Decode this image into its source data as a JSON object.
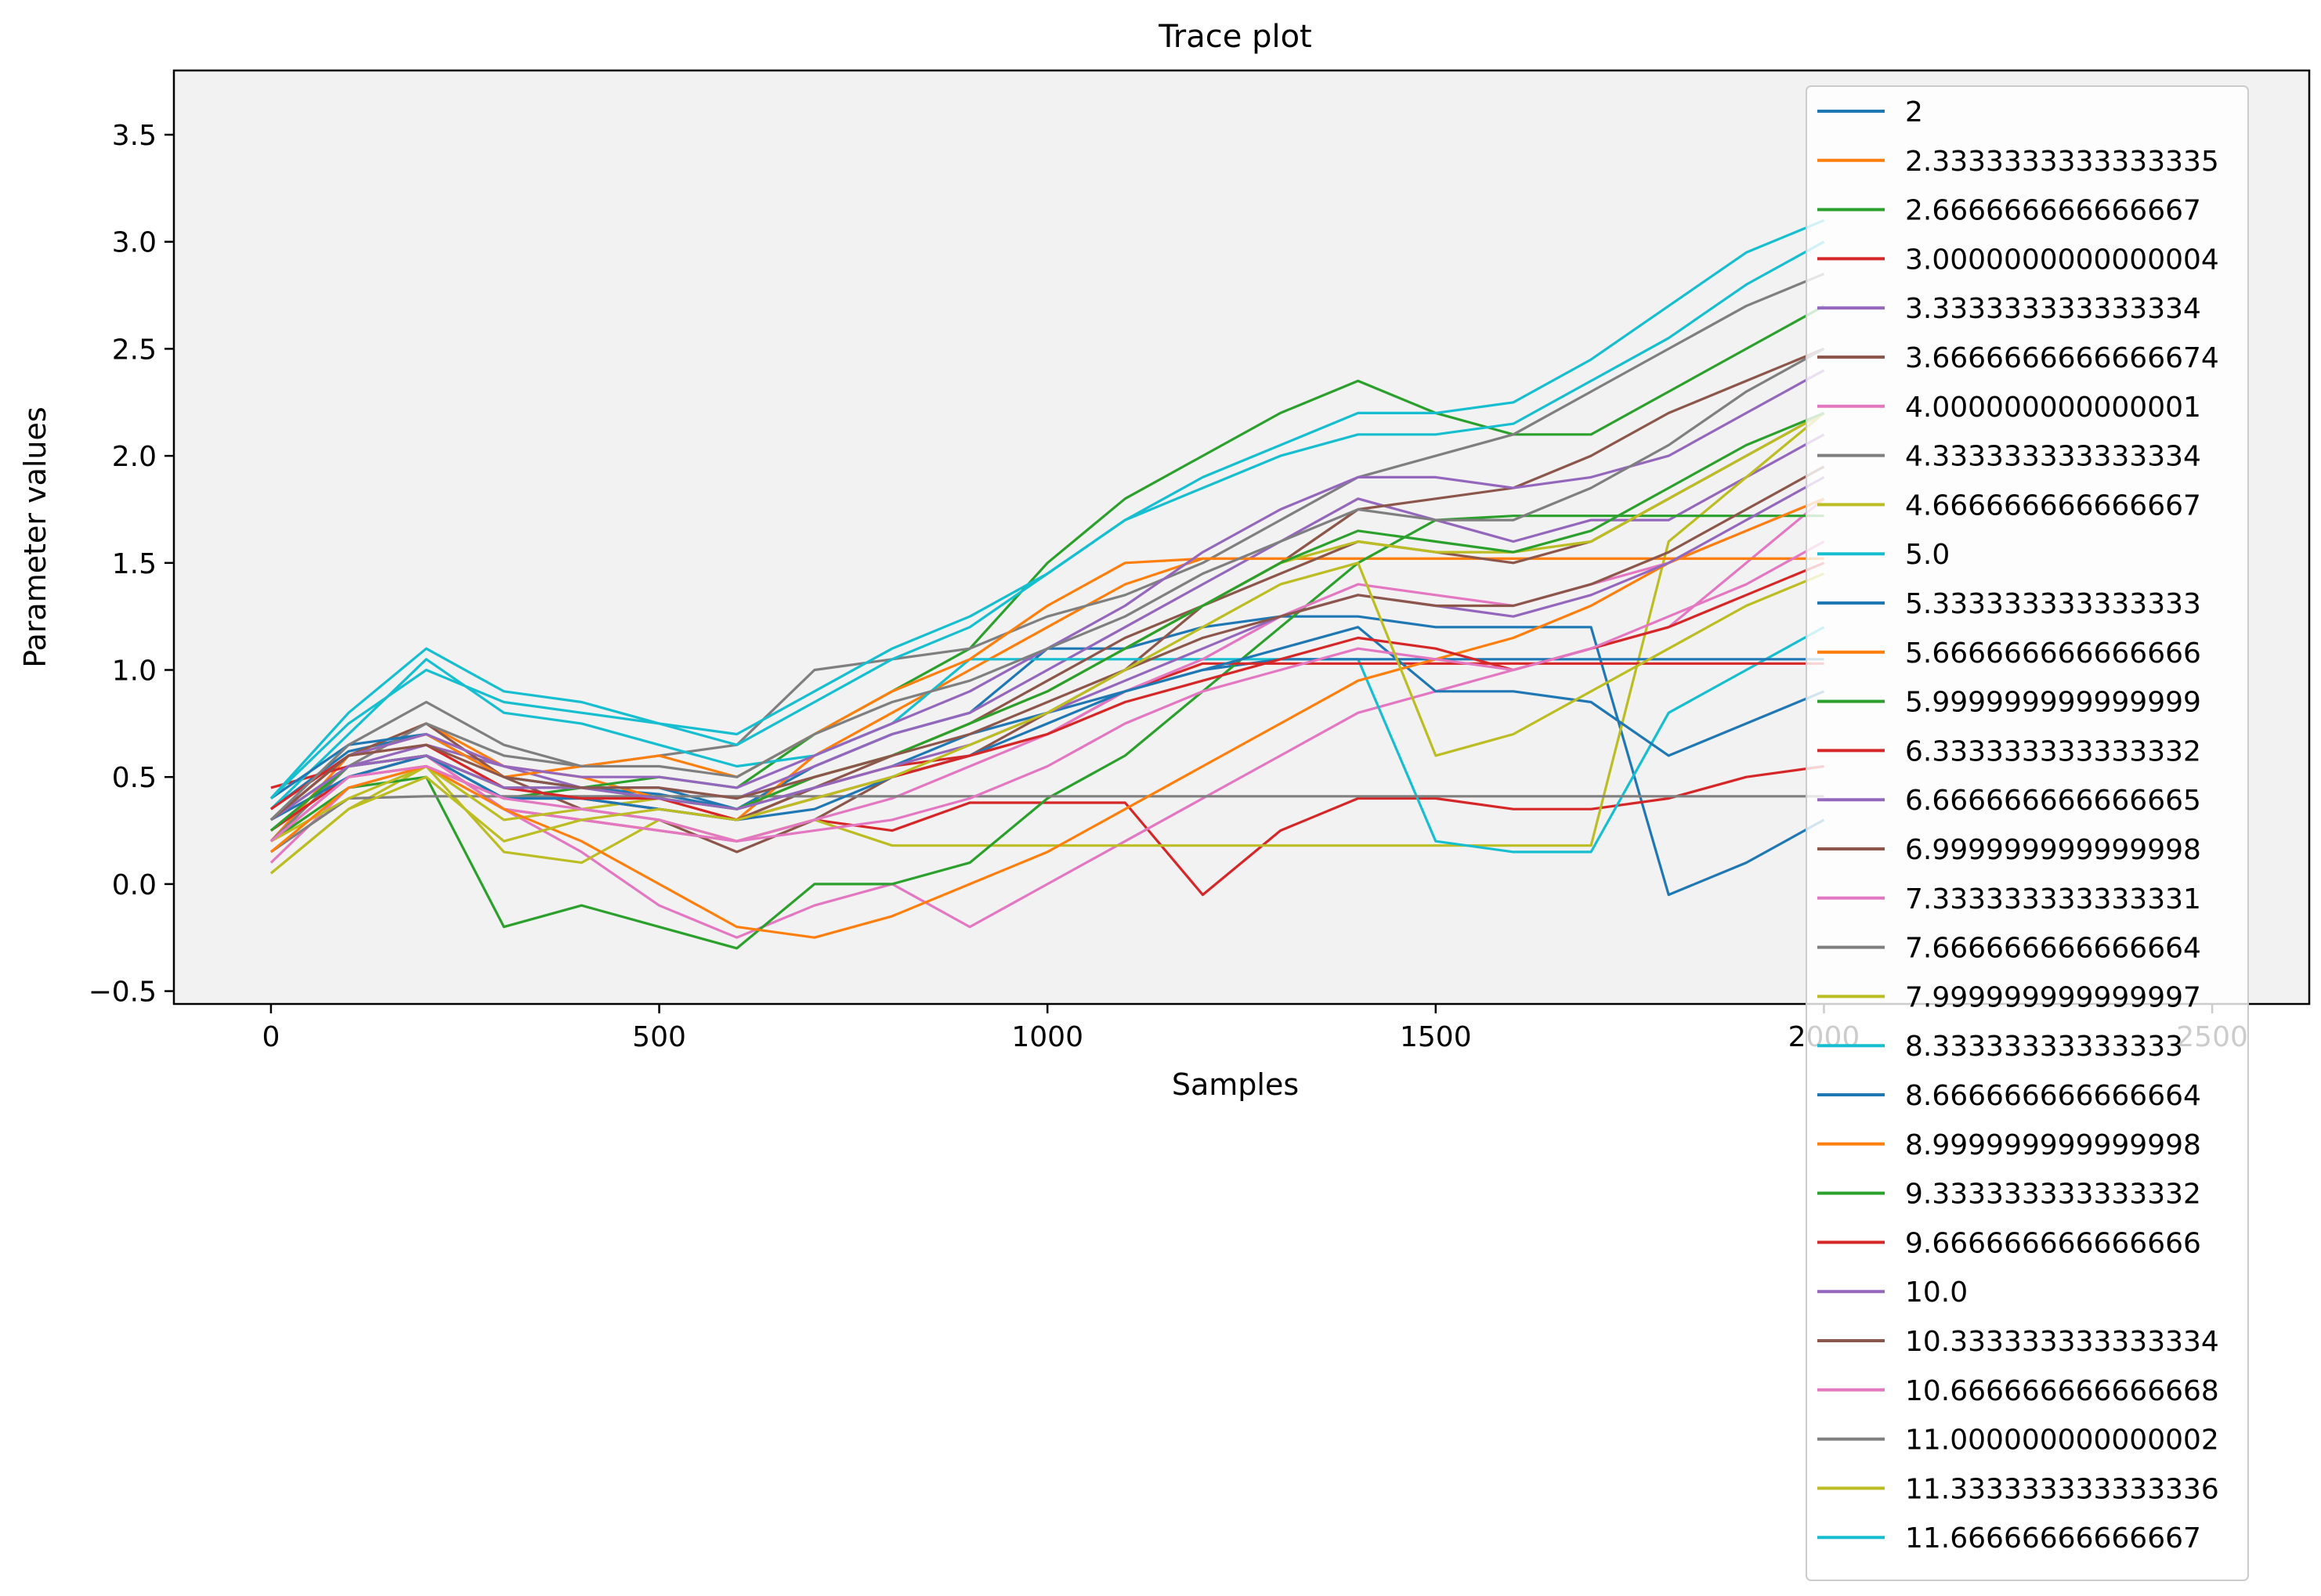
{
  "chart_data": {
    "type": "line",
    "title": "Trace plot",
    "xlabel": "Samples",
    "ylabel": "Parameter values",
    "xlim": [
      -125,
      2625
    ],
    "ylim": [
      -0.56,
      3.8
    ],
    "xticks": [
      0,
      500,
      1000,
      1500,
      2000,
      2500
    ],
    "xtick_labels": [
      "0",
      "500",
      "1000",
      "1500",
      "2000",
      "2500"
    ],
    "yticks": [
      -0.5,
      0.0,
      0.5,
      1.0,
      1.5,
      2.0,
      2.5,
      3.0,
      3.5
    ],
    "ytick_labels": [
      "−0.5",
      "0.0",
      "0.5",
      "1.0",
      "1.5",
      "2.0",
      "2.5",
      "3.0",
      "3.5"
    ],
    "grid": false,
    "plot_background": "#f2f2f2",
    "legend_position": "top-right, extending below the plot area",
    "x": [
      0,
      100,
      200,
      300,
      400,
      500,
      600,
      700,
      800,
      900,
      1000,
      1100,
      1200,
      1300,
      1400,
      1500,
      1600,
      1700,
      1800,
      1900,
      2000
    ],
    "series": [
      {
        "name": "2",
        "color": "#1f77b4",
        "values": [
          0.35,
          0.62,
          0.7,
          0.5,
          0.45,
          0.42,
          0.35,
          0.55,
          0.7,
          0.8,
          1.1,
          1.1,
          1.2,
          1.25,
          1.25,
          1.2,
          1.2,
          1.2,
          -0.05,
          0.1,
          0.3
        ]
      },
      {
        "name": "2.3333333333333335",
        "color": "#ff7f0e",
        "values": [
          0.2,
          0.6,
          0.75,
          0.55,
          0.5,
          0.4,
          0.3,
          0.6,
          0.8,
          1.0,
          1.2,
          1.4,
          1.52,
          1.52,
          1.52,
          1.52,
          1.52,
          1.52,
          1.52,
          1.52,
          1.52
        ]
      },
      {
        "name": "2.666666666666667",
        "color": "#2ca02c",
        "values": [
          0.3,
          0.55,
          0.6,
          0.4,
          0.45,
          0.5,
          0.45,
          0.7,
          0.9,
          1.1,
          1.5,
          1.8,
          2.0,
          2.2,
          2.35,
          2.2,
          2.1,
          2.1,
          2.3,
          2.5,
          2.7
        ]
      },
      {
        "name": "3.0000000000000004",
        "color": "#d62728",
        "values": [
          0.45,
          0.55,
          0.6,
          0.35,
          0.3,
          0.25,
          0.2,
          0.3,
          0.25,
          0.38,
          0.38,
          0.38,
          -0.05,
          0.25,
          0.4,
          0.4,
          0.35,
          0.35,
          0.4,
          0.5,
          0.55
        ]
      },
      {
        "name": "3.333333333333334",
        "color": "#9467bd",
        "values": [
          0.25,
          0.55,
          0.65,
          0.55,
          0.45,
          0.45,
          0.4,
          0.55,
          0.7,
          0.8,
          1.0,
          1.2,
          1.4,
          1.6,
          1.8,
          1.7,
          1.6,
          1.7,
          1.7,
          1.9,
          2.1
        ]
      },
      {
        "name": "3.6666666666666674",
        "color": "#8c564b",
        "values": [
          0.3,
          0.6,
          0.75,
          0.5,
          0.35,
          0.3,
          0.15,
          0.3,
          0.5,
          0.6,
          0.8,
          1.0,
          1.3,
          1.5,
          1.75,
          1.8,
          1.85,
          2.0,
          2.2,
          2.35,
          2.5
        ]
      },
      {
        "name": "4.000000000000001",
        "color": "#e377c2",
        "values": [
          0.25,
          0.5,
          0.6,
          0.35,
          0.15,
          -0.1,
          -0.25,
          -0.1,
          0.0,
          -0.2,
          0.0,
          0.2,
          0.4,
          0.6,
          0.8,
          0.9,
          1.0,
          1.1,
          1.2,
          1.5,
          1.8
        ]
      },
      {
        "name": "4.333333333333334",
        "color": "#7f7f7f",
        "values": [
          0.2,
          0.55,
          0.75,
          0.6,
          0.55,
          0.6,
          0.65,
          1.0,
          1.05,
          1.1,
          1.25,
          1.35,
          1.5,
          1.7,
          1.9,
          2.0,
          2.1,
          2.3,
          2.5,
          2.7,
          2.85
        ]
      },
      {
        "name": "4.666666666666667",
        "color": "#bcbd22",
        "values": [
          0.05,
          0.35,
          0.55,
          0.15,
          0.1,
          0.3,
          0.2,
          0.3,
          0.18,
          0.18,
          0.18,
          0.18,
          0.18,
          0.18,
          0.18,
          0.18,
          0.18,
          0.18,
          1.6,
          1.9,
          2.2
        ]
      },
      {
        "name": "5.0",
        "color": "#17becf",
        "values": [
          0.35,
          0.7,
          1.05,
          0.8,
          0.75,
          0.65,
          0.55,
          0.6,
          0.75,
          1.05,
          1.05,
          1.05,
          1.05,
          1.05,
          1.05,
          0.2,
          0.15,
          0.15,
          0.8,
          1.0,
          1.2
        ]
      },
      {
        "name": "5.333333333333333",
        "color": "#1f77b4",
        "values": [
          0.4,
          0.65,
          0.7,
          0.5,
          0.45,
          0.45,
          0.35,
          0.45,
          0.55,
          0.7,
          0.8,
          0.9,
          1.0,
          1.05,
          1.05,
          1.05,
          1.05,
          1.05,
          1.05,
          1.05,
          1.05
        ]
      },
      {
        "name": "5.666666666666666",
        "color": "#ff7f0e",
        "values": [
          0.3,
          0.6,
          0.7,
          0.5,
          0.55,
          0.6,
          0.5,
          0.7,
          0.9,
          1.05,
          1.3,
          1.5,
          1.52,
          1.52,
          1.52,
          1.52,
          1.52,
          1.52,
          1.52,
          1.52,
          1.52
        ]
      },
      {
        "name": "5.999999999999999",
        "color": "#2ca02c",
        "values": [
          0.2,
          0.45,
          0.5,
          -0.2,
          -0.1,
          -0.2,
          -0.3,
          0.0,
          0.0,
          0.1,
          0.4,
          0.6,
          0.9,
          1.2,
          1.5,
          1.7,
          1.72,
          1.72,
          1.72,
          1.72,
          1.72
        ]
      },
      {
        "name": "6.333333333333332",
        "color": "#d62728",
        "values": [
          0.25,
          0.5,
          0.55,
          0.4,
          0.4,
          0.35,
          0.3,
          0.45,
          0.55,
          0.6,
          0.7,
          0.9,
          1.03,
          1.03,
          1.03,
          1.03,
          1.03,
          1.03,
          1.03,
          1.03,
          1.03
        ]
      },
      {
        "name": "6.666666666666665",
        "color": "#9467bd",
        "values": [
          0.3,
          0.6,
          0.7,
          0.55,
          0.5,
          0.5,
          0.45,
          0.6,
          0.75,
          0.9,
          1.1,
          1.3,
          1.55,
          1.75,
          1.9,
          1.9,
          1.85,
          1.9,
          2.0,
          2.2,
          2.4
        ]
      },
      {
        "name": "6.999999999999998",
        "color": "#8c564b",
        "values": [
          0.2,
          0.5,
          0.6,
          0.45,
          0.4,
          0.35,
          0.3,
          0.45,
          0.6,
          0.75,
          0.95,
          1.15,
          1.3,
          1.45,
          1.6,
          1.55,
          1.5,
          1.6,
          1.8,
          2.0,
          2.2
        ]
      },
      {
        "name": "7.333333333333331",
        "color": "#e377c2",
        "values": [
          0.1,
          0.45,
          0.55,
          0.35,
          0.3,
          0.25,
          0.2,
          0.3,
          0.4,
          0.55,
          0.7,
          0.9,
          1.05,
          1.25,
          1.4,
          1.35,
          1.3,
          1.4,
          1.5,
          1.65,
          1.8
        ]
      },
      {
        "name": "7.666666666666664",
        "color": "#7f7f7f",
        "values": [
          0.15,
          0.4,
          0.41,
          0.41,
          0.41,
          0.41,
          0.41,
          0.41,
          0.41,
          0.41,
          0.41,
          0.41,
          0.41,
          0.41,
          0.41,
          0.41,
          0.41,
          0.41,
          0.41,
          0.41,
          0.41
        ]
      },
      {
        "name": "7.999999999999997",
        "color": "#bcbd22",
        "values": [
          0.2,
          0.4,
          0.55,
          0.3,
          0.35,
          0.4,
          0.35,
          0.5,
          0.6,
          0.75,
          0.9,
          1.1,
          1.3,
          1.5,
          1.6,
          1.55,
          1.55,
          1.6,
          1.8,
          2.0,
          2.2
        ]
      },
      {
        "name": "8.33333333333333",
        "color": "#17becf",
        "values": [
          0.4,
          0.75,
          1.0,
          0.85,
          0.8,
          0.75,
          0.65,
          0.85,
          1.05,
          1.2,
          1.45,
          1.7,
          1.9,
          2.05,
          2.2,
          2.2,
          2.25,
          2.45,
          2.7,
          2.95,
          3.1
        ]
      },
      {
        "name": "8.666666666666664",
        "color": "#1f77b4",
        "values": [
          0.3,
          0.5,
          0.6,
          0.4,
          0.4,
          0.35,
          0.3,
          0.35,
          0.5,
          0.6,
          0.75,
          0.9,
          1.0,
          1.1,
          1.2,
          0.9,
          0.9,
          0.85,
          0.6,
          0.75,
          0.9
        ]
      },
      {
        "name": "8.999999999999998",
        "color": "#ff7f0e",
        "values": [
          0.15,
          0.45,
          0.55,
          0.35,
          0.2,
          0.0,
          -0.2,
          -0.25,
          -0.15,
          0.0,
          0.15,
          0.35,
          0.55,
          0.75,
          0.95,
          1.05,
          1.15,
          1.3,
          1.5,
          1.65,
          1.8
        ]
      },
      {
        "name": "9.333333333333332",
        "color": "#2ca02c",
        "values": [
          0.25,
          0.55,
          0.6,
          0.45,
          0.45,
          0.4,
          0.35,
          0.5,
          0.6,
          0.75,
          0.9,
          1.1,
          1.3,
          1.5,
          1.65,
          1.6,
          1.55,
          1.65,
          1.85,
          2.05,
          2.2
        ]
      },
      {
        "name": "9.666666666666666",
        "color": "#d62728",
        "values": [
          0.35,
          0.6,
          0.65,
          0.45,
          0.4,
          0.4,
          0.3,
          0.4,
          0.5,
          0.6,
          0.7,
          0.85,
          0.95,
          1.05,
          1.15,
          1.1,
          1.0,
          1.1,
          1.2,
          1.35,
          1.5
        ]
      },
      {
        "name": "10.0",
        "color": "#9467bd",
        "values": [
          0.3,
          0.55,
          0.6,
          0.45,
          0.45,
          0.4,
          0.35,
          0.45,
          0.55,
          0.65,
          0.8,
          0.95,
          1.1,
          1.25,
          1.35,
          1.3,
          1.25,
          1.35,
          1.5,
          1.7,
          1.9
        ]
      },
      {
        "name": "10.333333333333334",
        "color": "#8c564b",
        "values": [
          0.3,
          0.6,
          0.65,
          0.5,
          0.45,
          0.45,
          0.4,
          0.5,
          0.6,
          0.7,
          0.85,
          1.0,
          1.15,
          1.25,
          1.35,
          1.3,
          1.3,
          1.4,
          1.55,
          1.75,
          1.95
        ]
      },
      {
        "name": "10.666666666666668",
        "color": "#e377c2",
        "values": [
          0.2,
          0.5,
          0.55,
          0.4,
          0.35,
          0.3,
          0.2,
          0.25,
          0.3,
          0.4,
          0.55,
          0.75,
          0.9,
          1.0,
          1.1,
          1.05,
          1.0,
          1.1,
          1.25,
          1.4,
          1.6
        ]
      },
      {
        "name": "11.000000000000002",
        "color": "#7f7f7f",
        "values": [
          0.3,
          0.65,
          0.85,
          0.65,
          0.55,
          0.55,
          0.5,
          0.7,
          0.85,
          0.95,
          1.1,
          1.25,
          1.45,
          1.6,
          1.75,
          1.7,
          1.7,
          1.85,
          2.05,
          2.3,
          2.5
        ]
      },
      {
        "name": "11.333333333333336",
        "color": "#bcbd22",
        "values": [
          0.05,
          0.35,
          0.5,
          0.2,
          0.3,
          0.35,
          0.3,
          0.4,
          0.5,
          0.65,
          0.8,
          1.0,
          1.2,
          1.4,
          1.5,
          0.6,
          0.7,
          0.9,
          1.1,
          1.3,
          1.45
        ]
      },
      {
        "name": "11.66666666666667",
        "color": "#17becf",
        "values": [
          0.4,
          0.8,
          1.1,
          0.9,
          0.85,
          0.75,
          0.7,
          0.9,
          1.1,
          1.25,
          1.45,
          1.7,
          1.85,
          2.0,
          2.1,
          2.1,
          2.15,
          2.35,
          2.55,
          2.8,
          3.0
        ]
      }
    ]
  }
}
